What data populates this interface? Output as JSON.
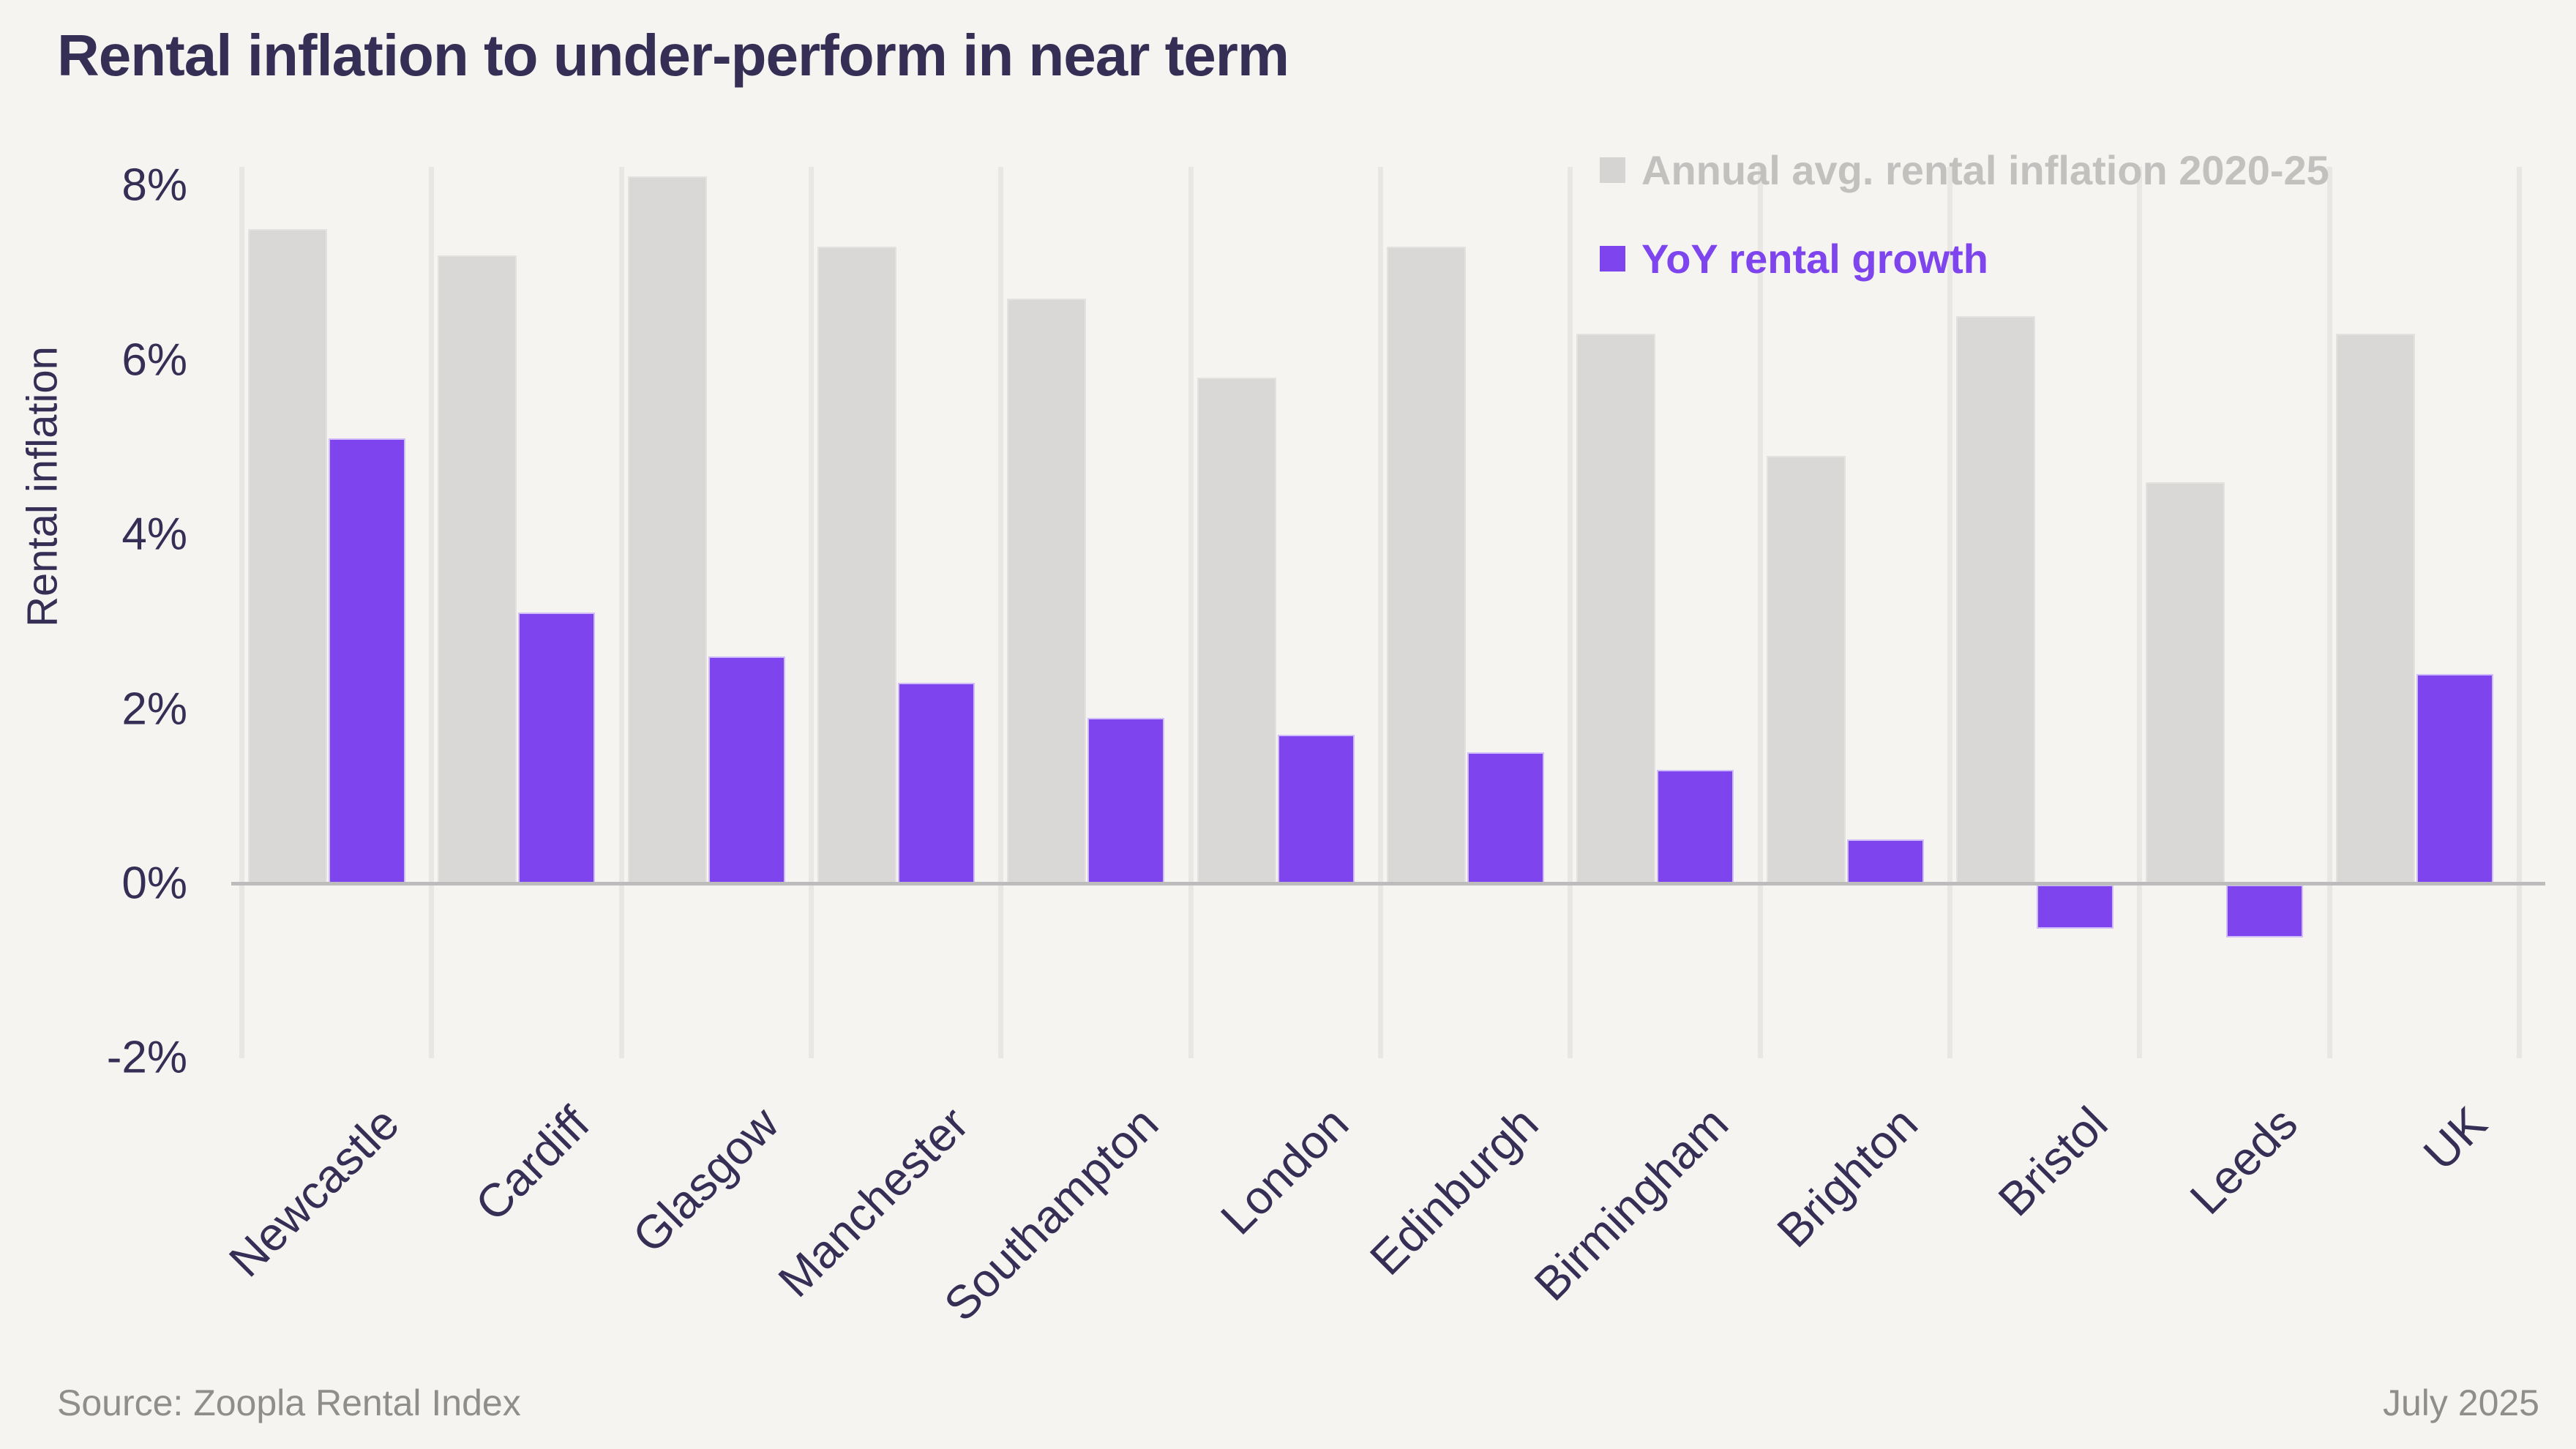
{
  "title": "Rental inflation to under-perform in near term",
  "y_axis": {
    "label": "Rental inflation",
    "ticks": [
      {
        "label": "8%",
        "value": 8
      },
      {
        "label": "6%",
        "value": 6
      },
      {
        "label": "4%",
        "value": 4
      },
      {
        "label": "2%",
        "value": 2
      },
      {
        "label": "0%",
        "value": 0
      },
      {
        "label": "-2%",
        "value": -2
      }
    ]
  },
  "legend": {
    "items": [
      {
        "label": "Annual avg. rental inflation 2020-25",
        "swatch_color": "#d5d4d2",
        "text_color": "#c2c1bf"
      },
      {
        "label": "YoY rental growth",
        "swatch_color": "#7e45ef",
        "text_color": "#7e45ef"
      }
    ]
  },
  "footer": {
    "source": "Source: Zoopla Rental Index",
    "date": "July 2025"
  },
  "colors": {
    "background": "#f5f4f1",
    "title_text": "#362f55",
    "axis_line": "#bcbcbc",
    "gridline": "#e9e7e3",
    "annual_bar": "#d9d8d6",
    "yoy_bar": "#7e45ef"
  },
  "chart_data": {
    "type": "bar",
    "categories": [
      "Newcastle",
      "Cardiff",
      "Glasgow",
      "Manchester",
      "Southampton",
      "London",
      "Edinburgh",
      "Birmingham",
      "Brighton",
      "Bristol",
      "Leeds",
      "UK"
    ],
    "series": [
      {
        "name": "Annual avg. rental inflation 2020-25",
        "color": "#d9d8d6",
        "values": [
          7.5,
          7.2,
          8.1,
          7.3,
          6.7,
          5.8,
          7.3,
          6.3,
          4.9,
          6.5,
          4.6,
          6.3
        ]
      },
      {
        "name": "YoY rental growth",
        "color": "#7e45ef",
        "values": [
          5.1,
          3.1,
          2.6,
          2.3,
          1.9,
          1.7,
          1.5,
          1.3,
          0.5,
          -0.5,
          -0.6,
          2.4
        ]
      }
    ],
    "ylabel": "Rental inflation",
    "ylim": [
      -2,
      8.2
    ],
    "ytick_values": [
      8,
      6,
      4,
      2,
      0,
      -2
    ],
    "unit": "%",
    "grid": "vertical",
    "legend_position": "top-right"
  }
}
